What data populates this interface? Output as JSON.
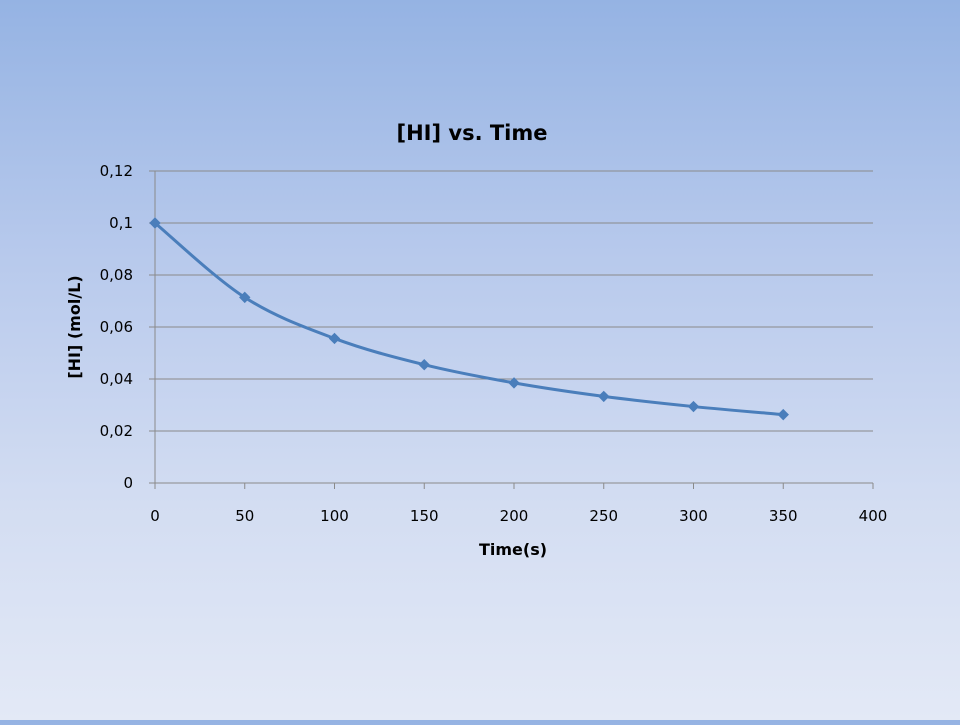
{
  "chart_data": {
    "type": "line",
    "title": "[HI] vs. Time",
    "xlabel": "Time(s)",
    "ylabel": "[HI] (mol/L)",
    "x_ticks": [
      "0",
      "50",
      "100",
      "150",
      "200",
      "250",
      "300",
      "350",
      "400"
    ],
    "y_ticks": [
      "0",
      "0,02",
      "0,04",
      "0,06",
      "0,08",
      "0,1",
      "0,12"
    ],
    "xlim": [
      0,
      400
    ],
    "ylim": [
      0,
      0.12
    ],
    "grid": true,
    "legend": false,
    "smooth": true,
    "series": [
      {
        "color": "#4a7ebb",
        "marker": "diamond",
        "x": [
          0,
          50,
          100,
          150,
          200,
          250,
          300,
          350
        ],
        "y": [
          0.1,
          0.0714,
          0.0556,
          0.0455,
          0.0385,
          0.0333,
          0.0294,
          0.0263
        ]
      }
    ]
  }
}
